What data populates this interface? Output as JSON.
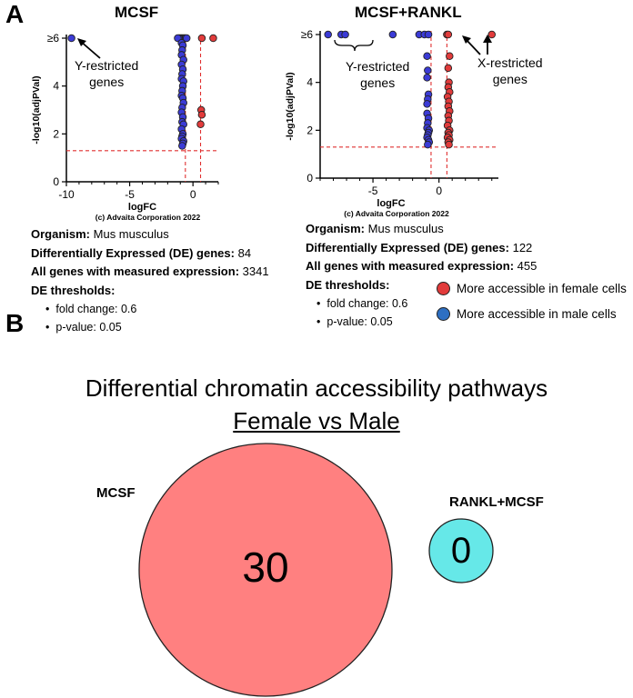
{
  "panel_a_label": "A",
  "panel_b_label": "B",
  "colors": {
    "female": "#e23b3b",
    "male": "#3b3bd6",
    "threshold": "#e03030",
    "venn_large": "#ff8080",
    "venn_small": "#66e8e8"
  },
  "chart_data": [
    {
      "type": "scatter",
      "title": "MCSF",
      "xlabel": "logFC",
      "ylabel": "-log10(adjPVal)",
      "xlim": [
        -10,
        2
      ],
      "ylim": [
        0,
        6
      ],
      "xticks": [
        "-10",
        "-5",
        "0"
      ],
      "yticks": [
        "0",
        "2",
        "4",
        "≥6"
      ],
      "copyright": "(c) Advaita Corporation 2022",
      "thresholds": {
        "fold_change_logFC": [
          -0.6,
          0.6
        ],
        "neg_log10_p": 1.3
      },
      "series": [
        {
          "color": "male",
          "points": [
            [
              -9.6,
              6
            ],
            [
              -1.0,
              6
            ],
            [
              -0.9,
              6
            ],
            [
              -0.8,
              6
            ],
            [
              -0.7,
              6
            ],
            [
              -0.6,
              6
            ],
            [
              -1.1,
              6
            ],
            [
              -1.2,
              6
            ],
            [
              -0.5,
              6
            ],
            [
              -0.9,
              5.8
            ],
            [
              -0.8,
              5.7
            ],
            [
              -0.85,
              5.5
            ],
            [
              -0.9,
              5.3
            ],
            [
              -0.75,
              5.1
            ],
            [
              -0.9,
              4.9
            ],
            [
              -0.8,
              4.7
            ],
            [
              -0.85,
              4.5
            ],
            [
              -0.9,
              4.3
            ],
            [
              -0.75,
              4.2
            ],
            [
              -0.8,
              4.0
            ],
            [
              -0.85,
              3.8
            ],
            [
              -0.9,
              3.6
            ],
            [
              -0.8,
              3.5
            ],
            [
              -0.75,
              3.3
            ],
            [
              -0.85,
              3.1
            ],
            [
              -0.9,
              2.9
            ],
            [
              -0.8,
              2.7
            ],
            [
              -0.85,
              2.5
            ],
            [
              -0.75,
              2.4
            ],
            [
              -0.9,
              2.2
            ],
            [
              -0.8,
              2.0
            ],
            [
              -0.85,
              1.9
            ],
            [
              -0.9,
              1.8
            ],
            [
              -0.75,
              1.7
            ],
            [
              -0.8,
              1.6
            ],
            [
              -0.85,
              1.5
            ]
          ]
        },
        {
          "color": "female",
          "points": [
            [
              0.7,
              6
            ],
            [
              1.6,
              6
            ],
            [
              0.65,
              3.0
            ],
            [
              0.7,
              2.8
            ],
            [
              0.6,
              2.4
            ]
          ]
        }
      ],
      "annotations": [
        {
          "text": "Y-restricted genes",
          "lines": [
            "Y-restricted",
            "genes"
          ]
        }
      ]
    },
    {
      "type": "scatter",
      "title": "MCSF+RANKL",
      "xlabel": "logFC",
      "ylabel": "-log10(adjPVal)",
      "xlim": [
        -9,
        4.5
      ],
      "ylim": [
        0,
        6
      ],
      "xticks": [
        "-5",
        "0"
      ],
      "yticks": [
        "0",
        "2",
        "4",
        "≥6"
      ],
      "copyright": "(c) Advaita Corporation 2022",
      "thresholds": {
        "fold_change_logFC": [
          -0.6,
          0.6
        ],
        "neg_log10_p": 1.3
      },
      "series": [
        {
          "color": "male",
          "points": [
            [
              -8.4,
              6
            ],
            [
              -7.4,
              6
            ],
            [
              -7.1,
              6
            ],
            [
              -3.5,
              6
            ],
            [
              -1.5,
              6
            ],
            [
              -1.1,
              6
            ],
            [
              -0.8,
              6
            ],
            [
              -0.9,
              5.1
            ],
            [
              -0.85,
              4.5
            ],
            [
              -0.9,
              4.2
            ],
            [
              -0.8,
              3.5
            ],
            [
              -0.85,
              3.3
            ],
            [
              -0.9,
              3.1
            ],
            [
              -0.9,
              2.7
            ],
            [
              -0.8,
              2.5
            ],
            [
              -0.85,
              2.3
            ],
            [
              -0.9,
              2.1
            ],
            [
              -0.75,
              2.0
            ],
            [
              -0.8,
              1.9
            ],
            [
              -0.85,
              1.8
            ],
            [
              -0.9,
              1.7
            ],
            [
              -0.8,
              1.6
            ],
            [
              -0.75,
              1.5
            ],
            [
              -0.85,
              1.4
            ]
          ]
        },
        {
          "color": "female",
          "points": [
            [
              0.6,
              6
            ],
            [
              0.7,
              6
            ],
            [
              4.0,
              6
            ],
            [
              0.8,
              5.1
            ],
            [
              0.7,
              4.6
            ],
            [
              0.75,
              4.0
            ],
            [
              0.7,
              3.8
            ],
            [
              0.8,
              3.6
            ],
            [
              0.65,
              3.4
            ],
            [
              0.75,
              3.2
            ],
            [
              0.7,
              3.0
            ],
            [
              0.8,
              2.8
            ],
            [
              0.7,
              2.6
            ],
            [
              0.75,
              2.4
            ],
            [
              0.65,
              2.2
            ],
            [
              0.8,
              2.0
            ],
            [
              0.7,
              1.9
            ],
            [
              0.75,
              1.8
            ],
            [
              0.65,
              1.7
            ],
            [
              0.8,
              1.6
            ],
            [
              0.7,
              1.5
            ],
            [
              0.75,
              1.4
            ]
          ]
        }
      ],
      "annotations": [
        {
          "text": "Y-restricted genes",
          "lines": [
            "Y-restricted",
            "genes"
          ]
        },
        {
          "text": "X-restricted genes",
          "lines": [
            "X-restricted",
            "genes"
          ]
        }
      ]
    }
  ],
  "stats_left": {
    "organism_label": "Organism:",
    "organism": "Mus musculus",
    "de_label": "Differentially Expressed (DE) genes:",
    "de": "84",
    "all_label": "All genes with measured expression:",
    "all": "3341",
    "thr_label": "DE thresholds:",
    "fold": "fold change: 0.6",
    "pval": "p-value: 0.05"
  },
  "stats_right": {
    "organism_label": "Organism:",
    "organism": "Mus musculus",
    "de_label": "Differentially Expressed (DE) genes:",
    "de": "122",
    "all_label": "All genes with measured expression:",
    "all": "455",
    "thr_label": "DE thresholds:",
    "fold": "fold change: 0.6",
    "pval": "p-value: 0.05"
  },
  "legend": {
    "female": "More accessible in female cells",
    "male": "More accessible in male cells"
  },
  "venn": {
    "title": "Differential chromatin accessibility pathways",
    "subtitle": "Female vs Male",
    "left_label": "MCSF",
    "left_value": "30",
    "right_label": "RANKL+MCSF",
    "right_value": "0"
  }
}
